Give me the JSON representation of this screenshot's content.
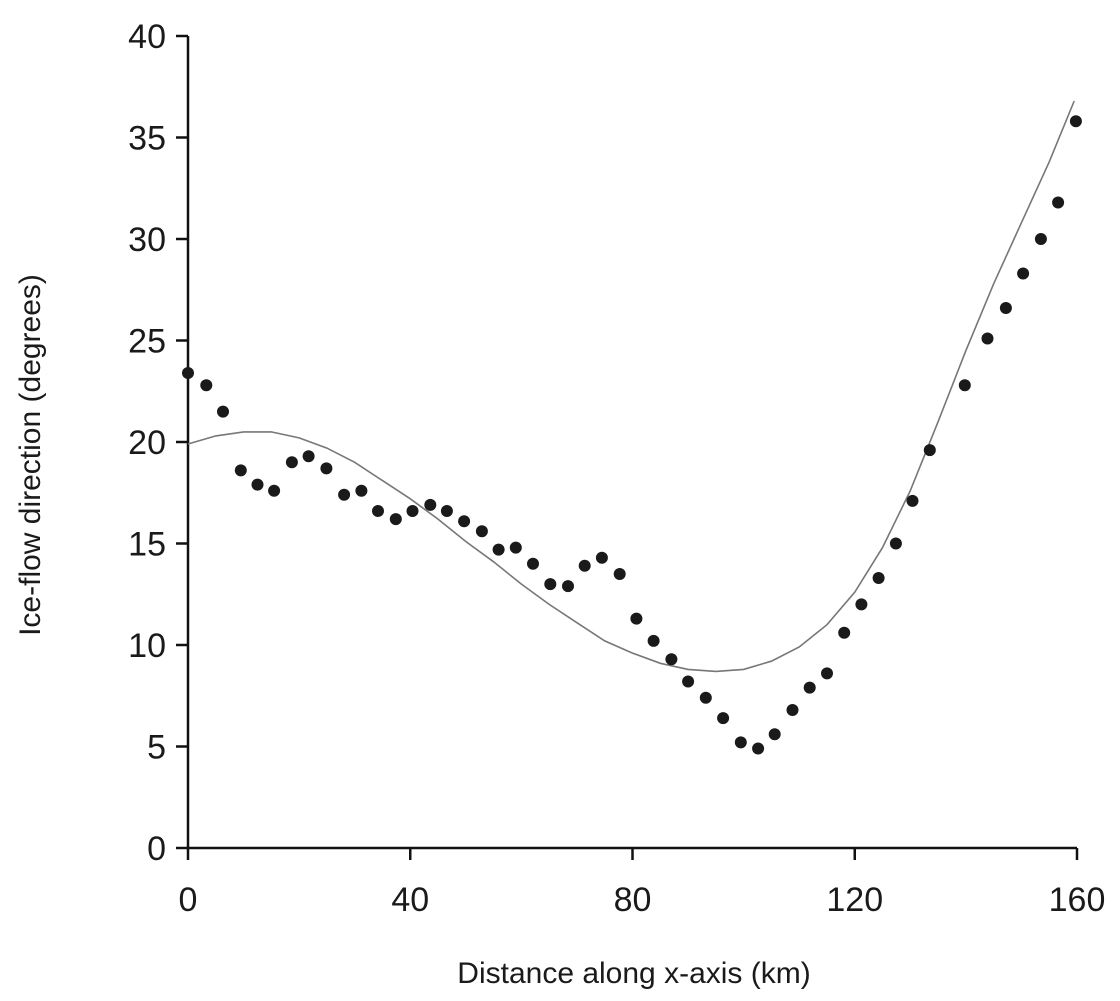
{
  "chart_data": {
    "type": "scatter",
    "xlabel": "Distance along x-axis (km)",
    "ylabel": "Ice-flow direction (degrees)",
    "xlim": [
      0,
      160
    ],
    "ylim": [
      0,
      40
    ],
    "xticks": [
      0,
      40,
      80,
      120,
      160
    ],
    "yticks": [
      0,
      5,
      10,
      15,
      20,
      25,
      30,
      35,
      40
    ],
    "grid": false,
    "legend": "none",
    "series": [
      {
        "kind": "points",
        "points": [
          [
            0,
            23.4
          ],
          [
            3.3,
            22.8
          ],
          [
            6.3,
            21.5
          ],
          [
            9.5,
            18.6
          ],
          [
            12.5,
            17.9
          ],
          [
            15.5,
            17.6
          ],
          [
            18.7,
            19.0
          ],
          [
            21.7,
            19.3
          ],
          [
            24.9,
            18.7
          ],
          [
            28.1,
            17.4
          ],
          [
            31.2,
            17.6
          ],
          [
            34.2,
            16.6
          ],
          [
            37.4,
            16.2
          ],
          [
            40.4,
            16.6
          ],
          [
            43.6,
            16.9
          ],
          [
            46.6,
            16.6
          ],
          [
            49.7,
            16.1
          ],
          [
            52.9,
            15.6
          ],
          [
            55.9,
            14.7
          ],
          [
            59.0,
            14.8
          ],
          [
            62.1,
            14.0
          ],
          [
            65.2,
            13.0
          ],
          [
            68.4,
            12.9
          ],
          [
            71.4,
            13.9
          ],
          [
            74.5,
            14.3
          ],
          [
            77.7,
            13.5
          ],
          [
            80.7,
            11.3
          ],
          [
            83.8,
            10.2
          ],
          [
            87.0,
            9.3
          ],
          [
            90.0,
            8.2
          ],
          [
            93.2,
            7.4
          ],
          [
            96.3,
            6.4
          ],
          [
            99.5,
            5.2
          ],
          [
            102.6,
            4.9
          ],
          [
            105.6,
            5.6
          ],
          [
            108.8,
            6.8
          ],
          [
            111.9,
            7.9
          ],
          [
            115.0,
            8.6
          ],
          [
            118.1,
            10.6
          ],
          [
            121.2,
            12.0
          ],
          [
            124.3,
            13.3
          ],
          [
            127.4,
            15.0
          ],
          [
            130.4,
            17.1
          ],
          [
            133.5,
            19.6
          ],
          [
            139.8,
            22.8
          ],
          [
            143.9,
            25.1
          ],
          [
            147.2,
            26.6
          ],
          [
            150.3,
            28.3
          ],
          [
            153.5,
            30.0
          ],
          [
            156.6,
            31.8
          ],
          [
            159.8,
            35.8
          ]
        ]
      },
      {
        "kind": "fit-line",
        "points": [
          [
            0,
            19.9
          ],
          [
            5,
            20.3
          ],
          [
            10,
            20.5
          ],
          [
            15,
            20.5
          ],
          [
            20,
            20.2
          ],
          [
            25,
            19.7
          ],
          [
            30,
            19.0
          ],
          [
            35,
            18.1
          ],
          [
            40,
            17.2
          ],
          [
            45,
            16.2
          ],
          [
            50,
            15.1
          ],
          [
            55,
            14.1
          ],
          [
            60,
            13.0
          ],
          [
            65,
            12.0
          ],
          [
            70,
            11.1
          ],
          [
            75,
            10.2
          ],
          [
            80,
            9.6
          ],
          [
            85,
            9.1
          ],
          [
            90,
            8.8
          ],
          [
            95,
            8.7
          ],
          [
            100,
            8.8
          ],
          [
            105,
            9.2
          ],
          [
            110,
            9.9
          ],
          [
            115,
            11.0
          ],
          [
            120,
            12.6
          ],
          [
            125,
            14.8
          ],
          [
            130,
            17.6
          ],
          [
            135,
            21.0
          ],
          [
            140,
            24.5
          ],
          [
            145,
            27.8
          ],
          [
            150,
            30.8
          ],
          [
            155,
            33.8
          ],
          [
            159.5,
            36.8
          ]
        ]
      }
    ]
  }
}
